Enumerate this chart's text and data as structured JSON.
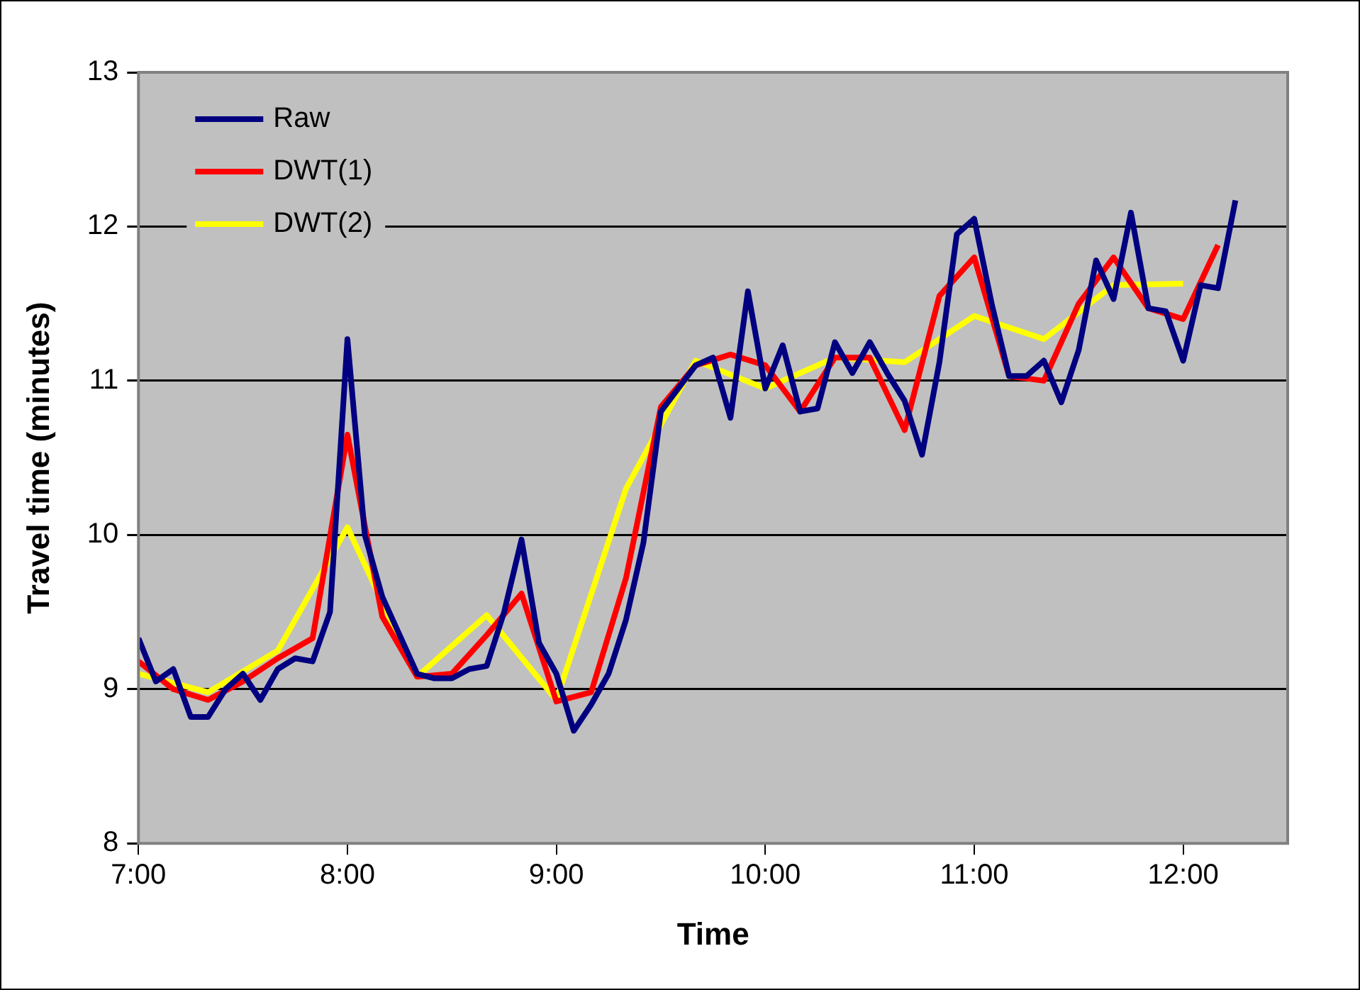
{
  "chart_data": {
    "type": "line",
    "xlabel": "Time",
    "ylabel": "Travel time (minutes)",
    "xlim": [
      7,
      12.5
    ],
    "xticks": [
      {
        "value": 7,
        "label": "7:00"
      },
      {
        "value": 8,
        "label": "8:00"
      },
      {
        "value": 9,
        "label": "9:00"
      },
      {
        "value": 10,
        "label": "10:00"
      },
      {
        "value": 11,
        "label": "11:00"
      },
      {
        "value": 12,
        "label": "12:00"
      }
    ],
    "ylim": [
      8,
      13
    ],
    "yticks": [
      8,
      9,
      10,
      11,
      12,
      13
    ],
    "grid": "y",
    "legend": "top left",
    "marker": "none",
    "line_style": "solid",
    "series": [
      {
        "name": "Raw",
        "color": "#000080",
        "x": [
          7,
          7.0833,
          7.1667,
          7.25,
          7.3333,
          7.4167,
          7.5,
          7.5833,
          7.6667,
          7.75,
          7.8333,
          7.9167,
          8,
          8.0833,
          8.1667,
          8.25,
          8.3333,
          8.4167,
          8.5,
          8.5833,
          8.6667,
          8.75,
          8.8333,
          8.9167,
          9,
          9.0833,
          9.1667,
          9.25,
          9.3333,
          9.4167,
          9.5,
          9.5833,
          9.6667,
          9.75,
          9.8333,
          9.9167,
          10,
          10.0833,
          10.1667,
          10.25,
          10.3333,
          10.4167,
          10.5,
          10.5833,
          10.6667,
          10.75,
          10.8333,
          10.9167,
          11,
          11.0833,
          11.1667,
          11.25,
          11.3333,
          11.4167,
          11.5,
          11.5833,
          11.6667,
          11.75,
          11.8333,
          11.9167,
          12,
          12.0833,
          12.1667,
          12.25
        ],
        "values": [
          9.33,
          9.05,
          9.13,
          8.82,
          8.82,
          9.0,
          9.1,
          8.93,
          9.13,
          9.2,
          9.18,
          9.5,
          11.27,
          10.0,
          9.6,
          9.35,
          9.1,
          9.07,
          9.07,
          9.13,
          9.15,
          9.5,
          9.97,
          9.3,
          9.1,
          8.73,
          8.9,
          9.1,
          9.45,
          9.95,
          10.8,
          10.95,
          11.1,
          11.15,
          10.76,
          11.58,
          10.95,
          11.23,
          10.8,
          10.82,
          11.25,
          11.05,
          11.25,
          11.05,
          10.87,
          10.52,
          11.12,
          11.95,
          12.05,
          11.5,
          11.03,
          11.03,
          11.13,
          10.86,
          11.2,
          11.78,
          11.53,
          12.09,
          11.47,
          11.45,
          11.13,
          11.62,
          11.6,
          12.17
        ]
      },
      {
        "name": "DWT(1)",
        "color": "#ff0000",
        "x": [
          7,
          7.1667,
          7.3333,
          7.5,
          7.6667,
          7.8333,
          8,
          8.1667,
          8.3333,
          8.5,
          8.6667,
          8.8333,
          9,
          9.1667,
          9.3333,
          9.5,
          9.6667,
          9.8333,
          10,
          10.1667,
          10.3333,
          10.5,
          10.6667,
          10.8333,
          11,
          11.1667,
          11.3333,
          11.5,
          11.6667,
          11.8333,
          12,
          12.1667
        ],
        "values": [
          9.18,
          9.0,
          8.93,
          9.05,
          9.2,
          9.33,
          10.65,
          9.47,
          9.08,
          9.1,
          9.35,
          9.62,
          8.92,
          8.98,
          9.72,
          10.83,
          11.1,
          11.17,
          11.1,
          10.8,
          11.15,
          11.15,
          10.68,
          11.55,
          11.8,
          11.03,
          11.0,
          11.5,
          11.8,
          11.47,
          11.4,
          11.88
        ]
      },
      {
        "name": "DWT(2)",
        "color": "#ffff00",
        "x": [
          7,
          7.3333,
          7.6667,
          8,
          8.3333,
          8.6667,
          9,
          9.3333,
          9.6667,
          10,
          10.3333,
          10.6667,
          11,
          11.3333,
          11.6667,
          12
        ],
        "values": [
          9.1,
          8.98,
          9.25,
          10.05,
          9.08,
          9.48,
          8.93,
          10.3,
          11.13,
          10.95,
          11.15,
          11.12,
          11.42,
          11.27,
          11.62,
          11.63
        ]
      }
    ]
  }
}
